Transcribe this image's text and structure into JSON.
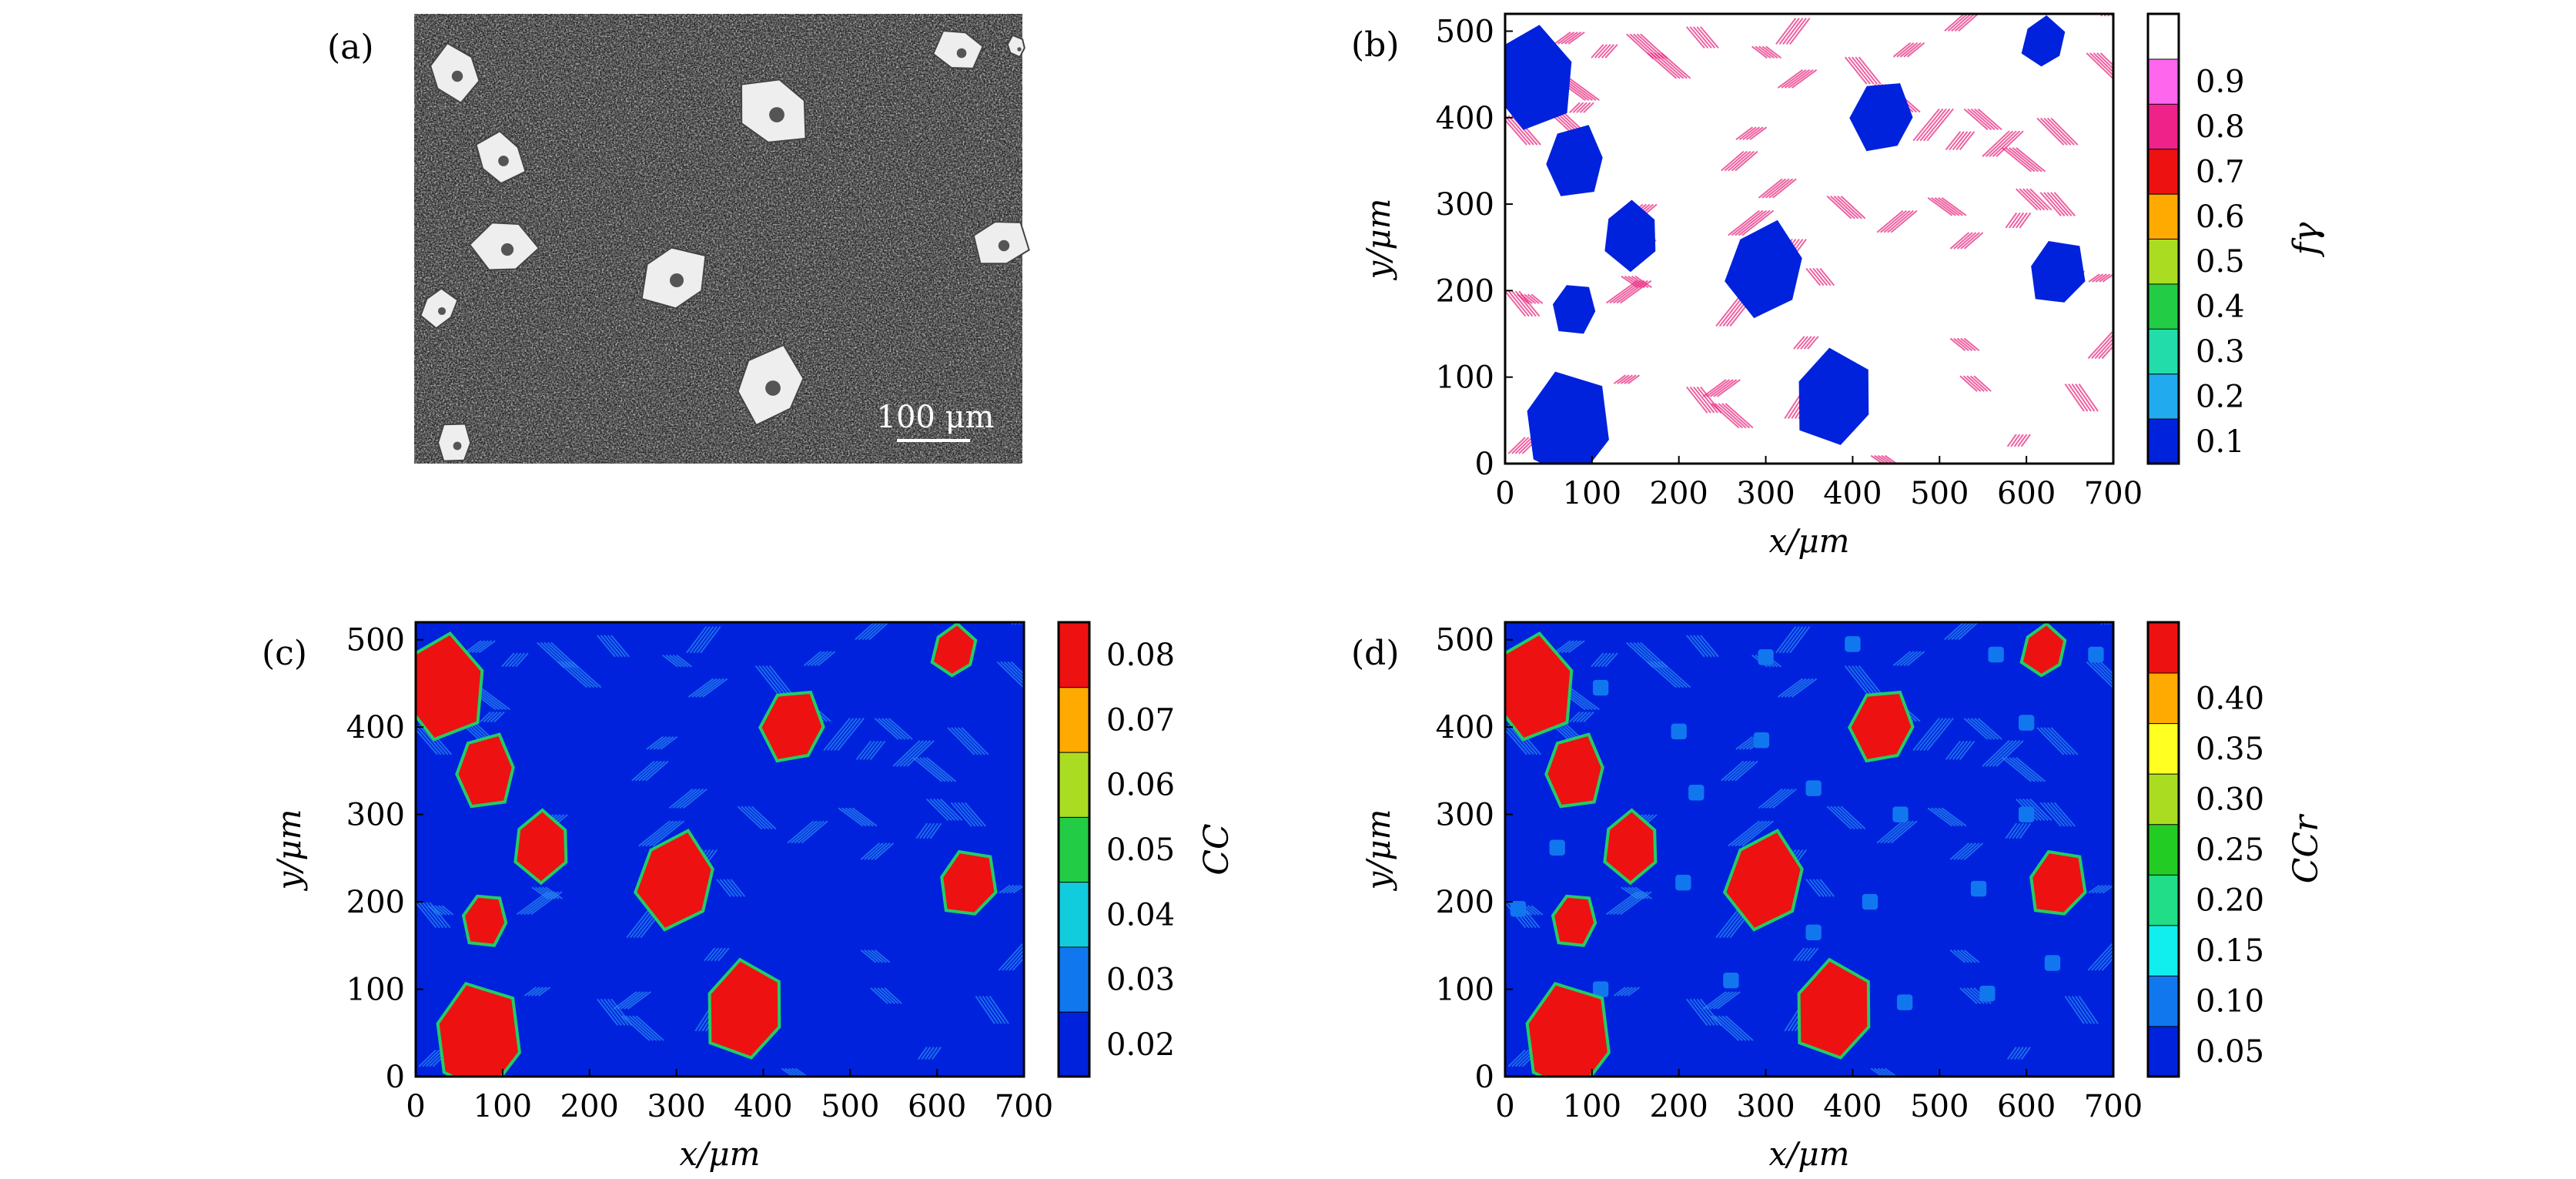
{
  "panel_labels": [
    "(a)",
    "(b)",
    "(c)",
    "(d)"
  ],
  "micrograph": {
    "scale_bar_label": "100 μm"
  },
  "colors": {
    "blue": "#0000ee",
    "red": "#ee1111",
    "magenta_streak": "#e8207a",
    "white": "#ffffff"
  },
  "chart_data": [
    {
      "panel": "(a)",
      "type": "image",
      "annotation": "100 μm"
    },
    {
      "panel": "(b)",
      "type": "heatmap",
      "xlabel": "x/μm",
      "ylabel": "y/μm",
      "xlim": [
        0,
        700
      ],
      "ylim": [
        0,
        520
      ],
      "xticks": [
        0,
        100,
        200,
        300,
        400,
        500,
        600,
        700
      ],
      "yticks": [
        0,
        100,
        200,
        300,
        400,
        500
      ],
      "colorbar": {
        "label": "fγ",
        "ticks": [
          "0.1",
          "0.2",
          "0.3",
          "0.4",
          "0.5",
          "0.6",
          "0.7",
          "0.8",
          "0.9"
        ],
        "bands": [
          "#0022dd",
          "#22aaee",
          "#22ddaa",
          "#22cc44",
          "#aadd22",
          "#ffaa00",
          "#ee1111",
          "#ee2288",
          "#ff66ee",
          "#ffffff"
        ]
      },
      "background_value": 0.95,
      "grain_value": 0.05,
      "grains": [
        {
          "cx": 30,
          "cy": 445,
          "r": 55
        },
        {
          "cx": 70,
          "cy": 45,
          "r": 58
        },
        {
          "cx": 80,
          "cy": 350,
          "r": 40
        },
        {
          "cx": 145,
          "cy": 265,
          "r": 38
        },
        {
          "cx": 80,
          "cy": 180,
          "r": 30
        },
        {
          "cx": 300,
          "cy": 225,
          "r": 52
        },
        {
          "cx": 380,
          "cy": 75,
          "r": 52
        },
        {
          "cx": 435,
          "cy": 400,
          "r": 40
        },
        {
          "cx": 620,
          "cy": 487,
          "r": 28
        },
        {
          "cx": 635,
          "cy": 220,
          "r": 38
        }
      ]
    },
    {
      "panel": "(c)",
      "type": "heatmap",
      "xlabel": "x/μm",
      "ylabel": "y/μm",
      "xlim": [
        0,
        700
      ],
      "ylim": [
        0,
        520
      ],
      "xticks": [
        0,
        100,
        200,
        300,
        400,
        500,
        600,
        700
      ],
      "yticks": [
        0,
        100,
        200,
        300,
        400,
        500
      ],
      "colorbar": {
        "label": "CC",
        "ticks": [
          "0.02",
          "0.03",
          "0.04",
          "0.05",
          "0.06",
          "0.07",
          "0.08"
        ],
        "bands": [
          "#0022dd",
          "#1177ee",
          "#11ccdd",
          "#22cc44",
          "#aadd22",
          "#ffaa00",
          "#ee1111"
        ]
      },
      "background_value": 0.018,
      "grain_value": 0.085,
      "grains": [
        {
          "cx": 30,
          "cy": 445,
          "r": 55
        },
        {
          "cx": 70,
          "cy": 45,
          "r": 58
        },
        {
          "cx": 80,
          "cy": 350,
          "r": 40
        },
        {
          "cx": 145,
          "cy": 265,
          "r": 38
        },
        {
          "cx": 80,
          "cy": 180,
          "r": 30
        },
        {
          "cx": 300,
          "cy": 225,
          "r": 52
        },
        {
          "cx": 380,
          "cy": 75,
          "r": 52
        },
        {
          "cx": 435,
          "cy": 400,
          "r": 40
        },
        {
          "cx": 620,
          "cy": 487,
          "r": 28
        },
        {
          "cx": 635,
          "cy": 220,
          "r": 38
        }
      ]
    },
    {
      "panel": "(d)",
      "type": "heatmap",
      "xlabel": "x/μm",
      "ylabel": "y/μm",
      "xlim": [
        0,
        700
      ],
      "ylim": [
        0,
        520
      ],
      "xticks": [
        0,
        100,
        200,
        300,
        400,
        500,
        600,
        700
      ],
      "yticks": [
        0,
        100,
        200,
        300,
        400,
        500
      ],
      "colorbar": {
        "label": "CCr",
        "ticks": [
          "0.05",
          "0.10",
          "0.15",
          "0.20",
          "0.25",
          "0.30",
          "0.35",
          "0.40"
        ],
        "bands": [
          "#0022dd",
          "#1177ee",
          "#11eeee",
          "#22dd88",
          "#22cc22",
          "#aadd22",
          "#ffff22",
          "#ffaa00",
          "#ee1111"
        ]
      },
      "background_value": 0.04,
      "grain_value": 0.42,
      "carbide_value": 0.1,
      "grains": [
        {
          "cx": 30,
          "cy": 445,
          "r": 55
        },
        {
          "cx": 70,
          "cy": 45,
          "r": 58
        },
        {
          "cx": 80,
          "cy": 350,
          "r": 40
        },
        {
          "cx": 145,
          "cy": 265,
          "r": 38
        },
        {
          "cx": 80,
          "cy": 180,
          "r": 30
        },
        {
          "cx": 300,
          "cy": 225,
          "r": 52
        },
        {
          "cx": 380,
          "cy": 75,
          "r": 52
        },
        {
          "cx": 435,
          "cy": 400,
          "r": 40
        },
        {
          "cx": 620,
          "cy": 487,
          "r": 28
        },
        {
          "cx": 635,
          "cy": 220,
          "r": 38
        }
      ],
      "carbides": [
        {
          "cx": 110,
          "cy": 445
        },
        {
          "cx": 200,
          "cy": 395
        },
        {
          "cx": 300,
          "cy": 480
        },
        {
          "cx": 400,
          "cy": 495
        },
        {
          "cx": 565,
          "cy": 483
        },
        {
          "cx": 680,
          "cy": 483
        },
        {
          "cx": 600,
          "cy": 405
        },
        {
          "cx": 295,
          "cy": 385
        },
        {
          "cx": 220,
          "cy": 325
        },
        {
          "cx": 355,
          "cy": 330
        },
        {
          "cx": 455,
          "cy": 300
        },
        {
          "cx": 600,
          "cy": 300
        },
        {
          "cx": 60,
          "cy": 262
        },
        {
          "cx": 205,
          "cy": 222
        },
        {
          "cx": 420,
          "cy": 200
        },
        {
          "cx": 15,
          "cy": 192
        },
        {
          "cx": 545,
          "cy": 215
        },
        {
          "cx": 630,
          "cy": 130
        },
        {
          "cx": 355,
          "cy": 165
        },
        {
          "cx": 110,
          "cy": 100
        },
        {
          "cx": 260,
          "cy": 110
        },
        {
          "cx": 460,
          "cy": 85
        },
        {
          "cx": 555,
          "cy": 95
        }
      ]
    }
  ]
}
